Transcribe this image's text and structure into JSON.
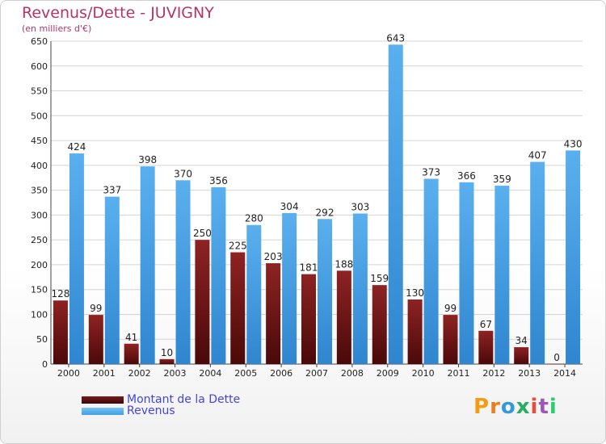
{
  "header": {
    "title": "Revenus/Dette - JUVIGNY",
    "subtitle": "(en milliers d'€)"
  },
  "chart_data": {
    "type": "bar",
    "categories": [
      "2000",
      "2001",
      "2002",
      "2003",
      "2004",
      "2005",
      "2006",
      "2007",
      "2008",
      "2009",
      "2010",
      "2011",
      "2012",
      "2013",
      "2014"
    ],
    "series": [
      {
        "name": "Montant de la Dette",
        "color": "#7a1a1a",
        "values": [
          128,
          99,
          41,
          10,
          250,
          225,
          203,
          181,
          188,
          159,
          130,
          99,
          67,
          34,
          0
        ]
      },
      {
        "name": "Revenus",
        "color": "#3f9fe6",
        "values": [
          424,
          337,
          398,
          370,
          356,
          280,
          304,
          292,
          303,
          643,
          373,
          366,
          359,
          407,
          430
        ]
      }
    ],
    "ylim": [
      0,
      650
    ],
    "yticks": [
      0,
      50,
      100,
      150,
      200,
      250,
      300,
      350,
      400,
      450,
      500,
      550,
      600,
      650
    ],
    "xlabel": "",
    "ylabel": "",
    "grid": true,
    "legend": "bottom-left"
  },
  "legend": {
    "items": [
      {
        "label": "Montant de la Dette",
        "color": "#7a1a1a"
      },
      {
        "label": "Revenus",
        "color": "#3f9fe6"
      }
    ]
  },
  "logo": {
    "text": "Proxiti",
    "colors": [
      "#f39c12",
      "#e67e22",
      "#3498db",
      "#27ae60",
      "#e74c3c",
      "#9b59b6",
      "#2ecc71"
    ]
  }
}
